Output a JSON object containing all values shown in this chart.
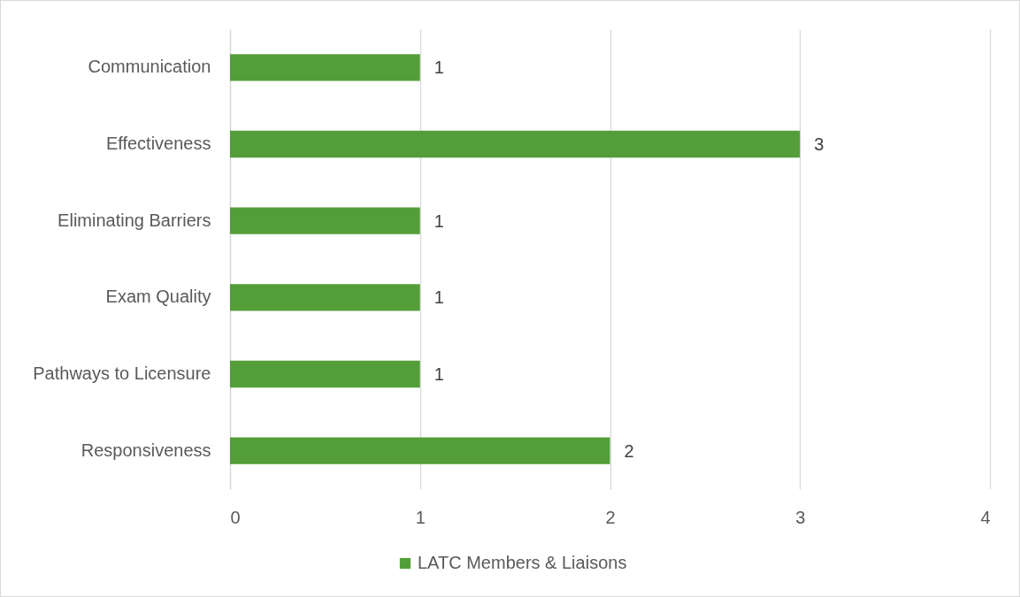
{
  "chart_data": {
    "type": "bar",
    "orientation": "horizontal",
    "categories": [
      "Communication",
      "Effectiveness",
      "Eliminating Barriers",
      "Exam Quality",
      "Pathways to Licensure",
      "Responsiveness"
    ],
    "series": [
      {
        "name": "LATC Members & Liaisons",
        "color": "#549e39",
        "values": [
          1,
          3,
          1,
          1,
          1,
          2
        ]
      }
    ],
    "xlim": [
      0,
      4
    ],
    "xticks": [
      0,
      1,
      2,
      3,
      4
    ],
    "grid": "x",
    "legend": "bottom",
    "data_labels": true
  }
}
